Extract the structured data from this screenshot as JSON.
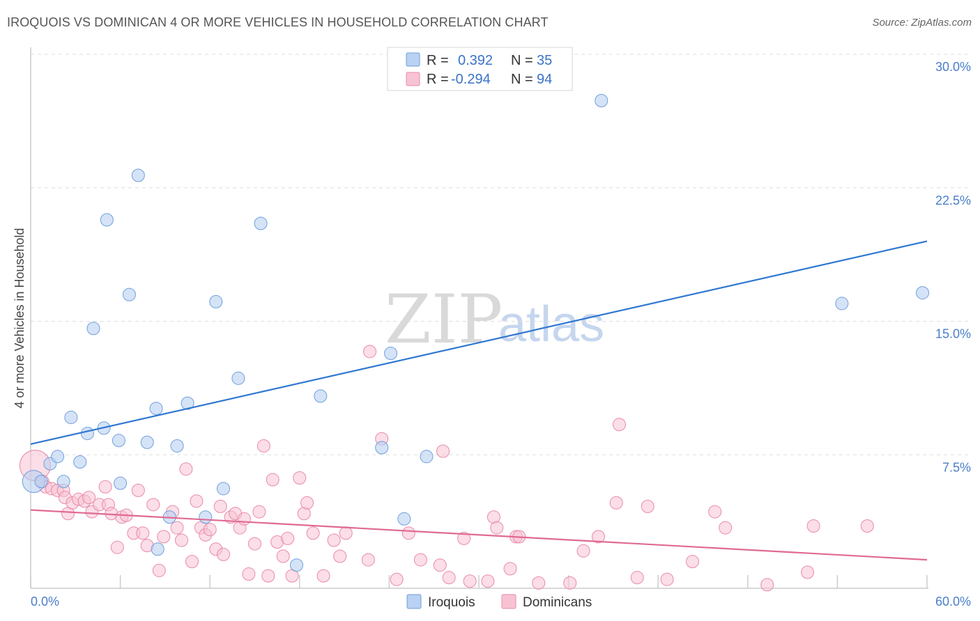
{
  "header": {
    "title": "IROQUOIS VS DOMINICAN 4 OR MORE VEHICLES IN HOUSEHOLD CORRELATION CHART",
    "source": "Source: ZipAtlas.com"
  },
  "watermark": {
    "zip": "ZIP",
    "atlas": "atlas"
  },
  "colors": {
    "iroquois_fill": "#b9d1f2",
    "iroquois_stroke": "#6f9fdc",
    "iroquois_line": "#2f77d0",
    "dominican_fill": "#f7c3d3",
    "dominican_stroke": "#e98aa8",
    "dominican_line": "#e06a92",
    "grid": "#dddddd",
    "axis_text": "#4a7ec9"
  },
  "legend": {
    "rows": [
      {
        "r_label": "R =",
        "r_value": "0.392",
        "n_label": "N =",
        "n_value": "35"
      },
      {
        "r_label": "R =",
        "r_value": "-0.294",
        "n_label": "N =",
        "n_value": "94"
      }
    ]
  },
  "bottom_legend": {
    "series1": "Iroquois",
    "series2": "Dominicans"
  },
  "chart_data": {
    "type": "scatter",
    "title": "IROQUOIS VS DOMINICAN 4 OR MORE VEHICLES IN HOUSEHOLD CORRELATION CHART",
    "xlabel": "",
    "ylabel": "4 or more Vehicles in Household",
    "xlim": [
      0,
      60
    ],
    "ylim": [
      0,
      30
    ],
    "x_tick_labels": [
      "0.0%",
      "60.0%"
    ],
    "y_ticks": [
      7.5,
      15.0,
      22.5,
      30.0
    ],
    "y_tick_labels": [
      "7.5%",
      "15.0%",
      "22.5%",
      "30.0%"
    ],
    "grid": true,
    "series": [
      {
        "name": "Iroquois",
        "r": 0.392,
        "n": 35,
        "trend": {
          "x0": 0,
          "y0": 8.1,
          "x1": 60,
          "y1": 19.5
        },
        "points": [
          [
            0.2,
            6.0
          ],
          [
            0.7,
            6.0
          ],
          [
            1.3,
            7.0
          ],
          [
            1.8,
            7.4
          ],
          [
            2.2,
            6.0
          ],
          [
            2.7,
            9.6
          ],
          [
            3.3,
            7.1
          ],
          [
            3.8,
            8.7
          ],
          [
            4.2,
            14.6
          ],
          [
            4.9,
            9.0
          ],
          [
            5.1,
            20.7
          ],
          [
            5.9,
            8.3
          ],
          [
            6.0,
            5.9
          ],
          [
            6.6,
            16.5
          ],
          [
            7.2,
            23.2
          ],
          [
            7.8,
            8.2
          ],
          [
            8.4,
            10.1
          ],
          [
            8.5,
            2.2
          ],
          [
            9.3,
            4.0
          ],
          [
            9.8,
            8.0
          ],
          [
            10.5,
            10.4
          ],
          [
            11.7,
            4.0
          ],
          [
            12.4,
            16.1
          ],
          [
            12.9,
            5.6
          ],
          [
            13.9,
            11.8
          ],
          [
            15.4,
            20.5
          ],
          [
            17.8,
            1.3
          ],
          [
            19.4,
            10.8
          ],
          [
            23.5,
            7.9
          ],
          [
            24.1,
            13.2
          ],
          [
            25.0,
            3.9
          ],
          [
            26.5,
            7.4
          ],
          [
            38.2,
            27.4
          ],
          [
            54.3,
            16.0
          ],
          [
            59.7,
            16.6
          ]
        ]
      },
      {
        "name": "Dominicans",
        "r": -0.294,
        "n": 94,
        "trend": {
          "x0": 0,
          "y0": 4.4,
          "x1": 60,
          "y1": 1.6
        },
        "points": [
          [
            0.3,
            6.9
          ],
          [
            0.8,
            6.0
          ],
          [
            1.0,
            5.7
          ],
          [
            1.4,
            5.6
          ],
          [
            1.8,
            5.5
          ],
          [
            2.2,
            5.5
          ],
          [
            2.3,
            5.1
          ],
          [
            2.5,
            4.2
          ],
          [
            2.8,
            4.8
          ],
          [
            3.2,
            5.0
          ],
          [
            3.6,
            4.9
          ],
          [
            3.9,
            5.1
          ],
          [
            4.1,
            4.3
          ],
          [
            4.6,
            4.7
          ],
          [
            5.0,
            5.7
          ],
          [
            5.2,
            4.7
          ],
          [
            5.4,
            4.2
          ],
          [
            5.8,
            2.3
          ],
          [
            6.1,
            4.0
          ],
          [
            6.4,
            4.1
          ],
          [
            6.9,
            3.1
          ],
          [
            7.2,
            5.5
          ],
          [
            7.5,
            3.1
          ],
          [
            7.8,
            2.4
          ],
          [
            8.2,
            4.7
          ],
          [
            8.6,
            1.0
          ],
          [
            8.9,
            2.9
          ],
          [
            9.5,
            4.3
          ],
          [
            9.8,
            3.4
          ],
          [
            10.1,
            2.7
          ],
          [
            10.4,
            6.7
          ],
          [
            10.8,
            1.5
          ],
          [
            11.1,
            4.9
          ],
          [
            11.4,
            3.4
          ],
          [
            11.7,
            3.0
          ],
          [
            12.0,
            3.3
          ],
          [
            12.4,
            2.2
          ],
          [
            12.7,
            4.6
          ],
          [
            12.9,
            1.9
          ],
          [
            13.4,
            4.0
          ],
          [
            13.7,
            4.2
          ],
          [
            14.0,
            3.4
          ],
          [
            14.3,
            3.9
          ],
          [
            14.6,
            0.8
          ],
          [
            15.0,
            2.5
          ],
          [
            15.3,
            4.3
          ],
          [
            15.6,
            8.0
          ],
          [
            15.9,
            0.7
          ],
          [
            16.2,
            6.1
          ],
          [
            16.5,
            2.6
          ],
          [
            16.9,
            1.8
          ],
          [
            17.2,
            2.8
          ],
          [
            17.5,
            0.7
          ],
          [
            18.0,
            6.2
          ],
          [
            18.3,
            4.2
          ],
          [
            18.5,
            4.8
          ],
          [
            18.9,
            3.1
          ],
          [
            19.6,
            0.7
          ],
          [
            20.3,
            2.7
          ],
          [
            20.7,
            1.8
          ],
          [
            21.1,
            3.1
          ],
          [
            22.6,
            1.6
          ],
          [
            22.7,
            13.3
          ],
          [
            23.5,
            8.4
          ],
          [
            24.5,
            0.5
          ],
          [
            25.3,
            3.1
          ],
          [
            26.1,
            1.6
          ],
          [
            27.4,
            1.3
          ],
          [
            27.6,
            7.7
          ],
          [
            28.0,
            0.6
          ],
          [
            29.0,
            2.8
          ],
          [
            29.4,
            0.4
          ],
          [
            30.6,
            0.4
          ],
          [
            31.0,
            4.0
          ],
          [
            31.2,
            3.4
          ],
          [
            32.1,
            1.1
          ],
          [
            32.5,
            2.9
          ],
          [
            32.7,
            2.9
          ],
          [
            34.0,
            0.3
          ],
          [
            36.1,
            0.3
          ],
          [
            37.0,
            2.1
          ],
          [
            38.0,
            2.9
          ],
          [
            39.2,
            4.8
          ],
          [
            39.4,
            9.2
          ],
          [
            40.6,
            0.6
          ],
          [
            41.3,
            4.6
          ],
          [
            42.6,
            0.5
          ],
          [
            44.3,
            1.5
          ],
          [
            45.8,
            4.3
          ],
          [
            46.5,
            3.4
          ],
          [
            49.3,
            0.2
          ],
          [
            52.0,
            0.9
          ],
          [
            52.4,
            3.5
          ],
          [
            56.0,
            3.5
          ]
        ]
      }
    ]
  }
}
